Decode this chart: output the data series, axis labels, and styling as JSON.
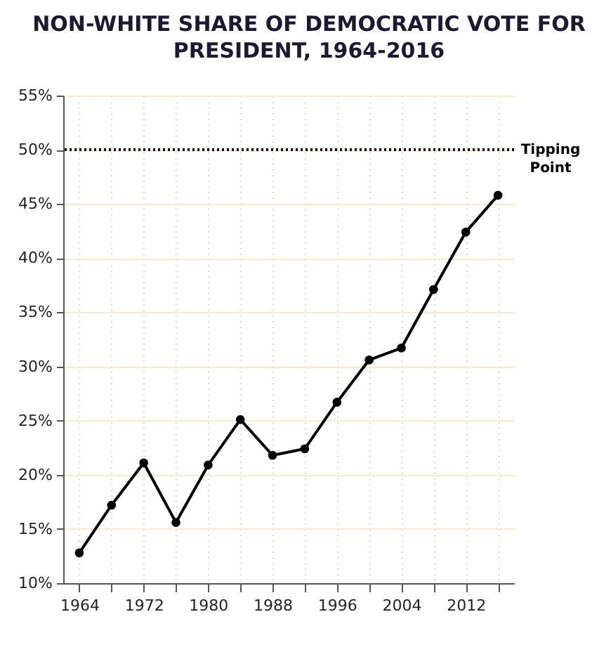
{
  "chart_data": {
    "type": "line",
    "title": "NON-WHITE SHARE OF DEMOCRATIC VOTE FOR PRESIDENT, 1964-2016",
    "x": [
      1964,
      1968,
      1972,
      1976,
      1980,
      1984,
      1988,
      1992,
      1996,
      2000,
      2004,
      2008,
      2012,
      2016
    ],
    "series": [
      {
        "color": "#000000",
        "values": [
          12.8,
          17.2,
          21.1,
          15.6,
          20.9,
          25.1,
          21.8,
          22.4,
          26.7,
          30.6,
          31.7,
          37.1,
          42.4,
          45.8
        ]
      }
    ],
    "xlim": [
      1962,
      2018
    ],
    "xticks": [
      1964,
      {
        "value": 1968,
        "label": null
      },
      1972,
      {
        "value": 1976,
        "label": null
      },
      1980,
      {
        "value": 1984,
        "label": null
      },
      1988,
      {
        "value": 1992,
        "label": null
      },
      1996,
      {
        "value": 2000,
        "label": null
      },
      2004,
      {
        "value": 2008,
        "label": null
      },
      2012,
      {
        "value": 2016,
        "label": null
      }
    ],
    "ylim": [
      10,
      55
    ],
    "yticks": [
      {
        "value": 10,
        "label": "10%"
      },
      {
        "value": 15,
        "label": "15%"
      },
      {
        "value": 20,
        "label": "20%"
      },
      {
        "value": 25,
        "label": "25%"
      },
      {
        "value": 30,
        "label": "30%"
      },
      {
        "value": 35,
        "label": "35%"
      },
      {
        "value": 40,
        "label": "40%"
      },
      {
        "value": 45,
        "label": "45%"
      },
      {
        "value": 50,
        "label": "50%"
      },
      {
        "value": 55,
        "label": "55%"
      }
    ],
    "ref_lines": [
      {
        "axis": "y",
        "value": 50,
        "label": "Tipping Point",
        "color": "#000000",
        "line_style": "dotted"
      }
    ],
    "grid": true,
    "marker": "circle",
    "line_style": "solid"
  }
}
